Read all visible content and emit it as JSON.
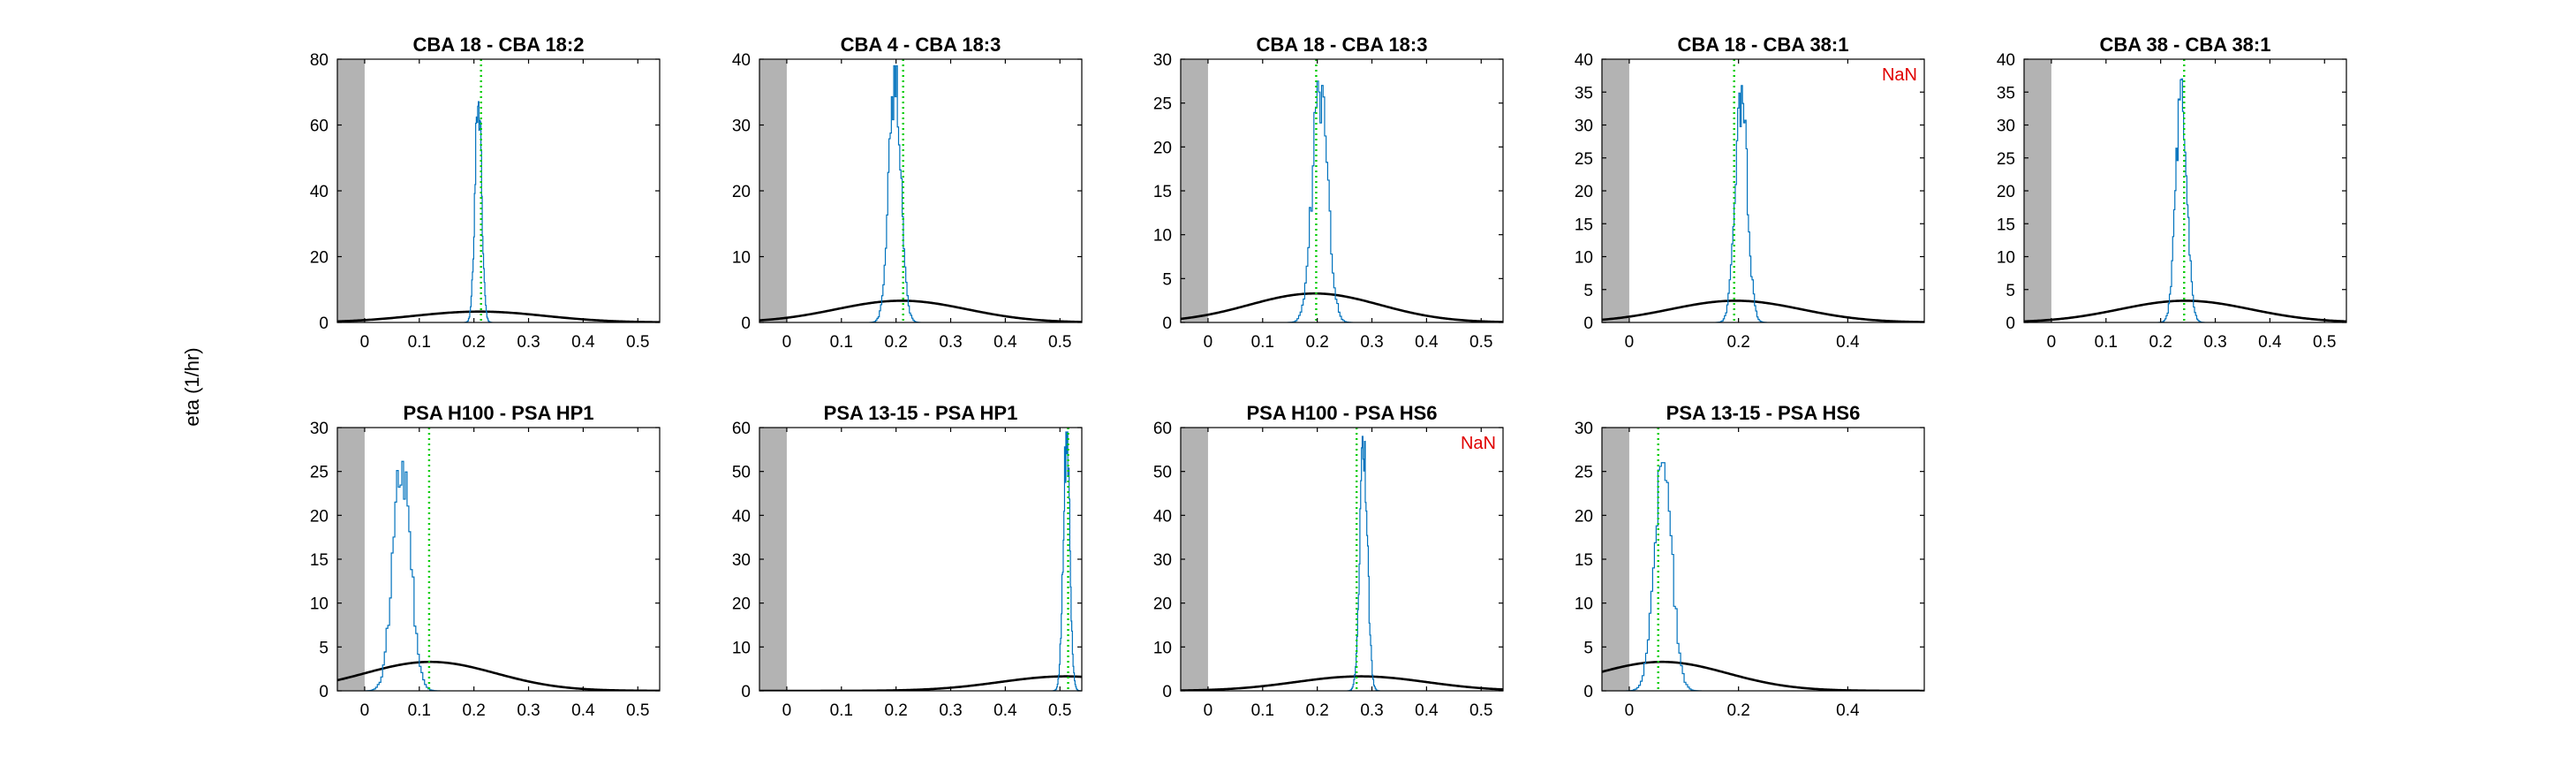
{
  "figure": {
    "ylabel": "eta (1/hr)",
    "colors": {
      "shade": "#b3b3b3",
      "histogram": "#0072bd",
      "median_line": "#00cc00",
      "prior_curve": "#000000",
      "nan_text": "#e00000",
      "axes": "#000000"
    }
  },
  "chart_data": [
    {
      "type": "line",
      "title": "CBA 18 - CBA 18:2",
      "xlim": [
        -0.05,
        0.54
      ],
      "ylim": [
        0,
        80
      ],
      "xticks": [
        0,
        0.1,
        0.2,
        0.3,
        0.4,
        0.5
      ],
      "xtick_labels": [
        "0",
        "0.1",
        "0.2",
        "0.3",
        "0.4",
        "0.5"
      ],
      "yticks": [
        0,
        20,
        40,
        60,
        80
      ],
      "yticks_labels": [
        "0",
        "20",
        "40",
        "60",
        "80"
      ],
      "shaded_region": [
        -0.05,
        0
      ],
      "median": 0.213,
      "histogram": {
        "center": 0.208,
        "width": 0.006,
        "peak": 72
      },
      "prior": {
        "mean": 0.21,
        "sd": 0.12,
        "peak": 3.3
      },
      "annotation": ""
    },
    {
      "type": "line",
      "title": "CBA 4 - CBA 18:3",
      "xlim": [
        -0.05,
        0.54
      ],
      "ylim": [
        0,
        40
      ],
      "xticks": [
        0,
        0.1,
        0.2,
        0.3,
        0.4,
        0.5
      ],
      "xtick_labels": [
        "0",
        "0.1",
        "0.2",
        "0.3",
        "0.4",
        "0.5"
      ],
      "yticks": [
        0,
        10,
        20,
        30,
        40
      ],
      "yticks_labels": [
        "0",
        "10",
        "20",
        "30",
        "40"
      ],
      "shaded_region": [
        -0.05,
        0
      ],
      "median": 0.213,
      "histogram": {
        "center": 0.198,
        "width": 0.011,
        "peak": 39
      },
      "prior": {
        "mean": 0.21,
        "sd": 0.12,
        "peak": 3.3
      },
      "annotation": ""
    },
    {
      "type": "line",
      "title": "CBA 18 - CBA 18:3",
      "xlim": [
        -0.05,
        0.54
      ],
      "ylim": [
        0,
        30
      ],
      "xticks": [
        0,
        0.1,
        0.2,
        0.3,
        0.4,
        0.5
      ],
      "xtick_labels": [
        "0",
        "0.1",
        "0.2",
        "0.3",
        "0.4",
        "0.5"
      ],
      "yticks": [
        0,
        5,
        10,
        15,
        20,
        25,
        30
      ],
      "yticks_labels": [
        "0",
        "5",
        "10",
        "15",
        "20",
        "25",
        "30"
      ],
      "shaded_region": [
        -0.05,
        0
      ],
      "median": 0.198,
      "histogram": {
        "center": 0.205,
        "width": 0.014,
        "peak": 27.5
      },
      "prior": {
        "mean": 0.195,
        "sd": 0.12,
        "peak": 3.3
      },
      "annotation": ""
    },
    {
      "type": "line",
      "title": "CBA 18 - CBA 38:1",
      "xlim": [
        -0.05,
        0.54
      ],
      "ylim": [
        0,
        40
      ],
      "xticks": [
        0,
        0.2,
        0.4
      ],
      "xtick_labels": [
        "0",
        "0.2",
        "0.4"
      ],
      "yticks": [
        0,
        5,
        10,
        15,
        20,
        25,
        30,
        35,
        40
      ],
      "yticks_labels": [
        "0",
        "5",
        "10",
        "15",
        "20",
        "25",
        "30",
        "35",
        "40"
      ],
      "shaded_region": [
        -0.05,
        0
      ],
      "median": 0.192,
      "histogram": {
        "center": 0.205,
        "width": 0.011,
        "peak": 36
      },
      "prior": {
        "mean": 0.195,
        "sd": 0.12,
        "peak": 3.3
      },
      "annotation": "NaN"
    },
    {
      "type": "line",
      "title": "CBA 38 - CBA 38:1",
      "xlim": [
        -0.05,
        0.54
      ],
      "ylim": [
        0,
        40
      ],
      "xticks": [
        0,
        0.1,
        0.2,
        0.3,
        0.4,
        0.5
      ],
      "xtick_labels": [
        "0",
        "0.1",
        "0.2",
        "0.3",
        "0.4",
        "0.5"
      ],
      "yticks": [
        0,
        5,
        10,
        15,
        20,
        25,
        30,
        35,
        40
      ],
      "yticks_labels": [
        "0",
        "5",
        "10",
        "15",
        "20",
        "25",
        "30",
        "35",
        "40"
      ],
      "shaded_region": [
        -0.05,
        0
      ],
      "median": 0.243,
      "histogram": {
        "center": 0.238,
        "width": 0.01,
        "peak": 37
      },
      "prior": {
        "mean": 0.245,
        "sd": 0.12,
        "peak": 3.3
      },
      "annotation": ""
    },
    {
      "type": "line",
      "title": "PSA H100 - PSA HP1",
      "xlim": [
        -0.05,
        0.54
      ],
      "ylim": [
        0,
        30
      ],
      "xticks": [
        0,
        0.1,
        0.2,
        0.3,
        0.4,
        0.5
      ],
      "xtick_labels": [
        "0",
        "0.1",
        "0.2",
        "0.3",
        "0.4",
        "0.5"
      ],
      "yticks": [
        0,
        5,
        10,
        15,
        20,
        25,
        30
      ],
      "yticks_labels": [
        "0",
        "5",
        "10",
        "15",
        "20",
        "25",
        "30"
      ],
      "shaded_region": [
        -0.05,
        0
      ],
      "median": 0.118,
      "histogram": {
        "center": 0.068,
        "width": 0.016,
        "peak": 27
      },
      "prior": {
        "mean": 0.12,
        "sd": 0.12,
        "peak": 3.3
      },
      "annotation": ""
    },
    {
      "type": "line",
      "title": "PSA 13-15 - PSA HP1",
      "xlim": [
        -0.05,
        0.54
      ],
      "ylim": [
        0,
        60
      ],
      "xticks": [
        0,
        0.1,
        0.2,
        0.3,
        0.4,
        0.5
      ],
      "xtick_labels": [
        "0",
        "0.1",
        "0.2",
        "0.3",
        "0.4",
        "0.5"
      ],
      "yticks": [
        0,
        10,
        20,
        30,
        40,
        50,
        60
      ],
      "yticks_labels": [
        "0",
        "10",
        "20",
        "30",
        "40",
        "50",
        "60"
      ],
      "shaded_region": [
        -0.05,
        0
      ],
      "median": 0.515,
      "histogram": {
        "center": 0.512,
        "width": 0.006,
        "peak": 59
      },
      "prior": {
        "mean": 0.51,
        "sd": 0.12,
        "peak": 3.3
      },
      "annotation": ""
    },
    {
      "type": "line",
      "title": "PSA H100 - PSA HS6",
      "xlim": [
        -0.05,
        0.54
      ],
      "ylim": [
        0,
        60
      ],
      "xticks": [
        0,
        0.1,
        0.2,
        0.3,
        0.4,
        0.5
      ],
      "xtick_labels": [
        "0",
        "0.1",
        "0.2",
        "0.3",
        "0.4",
        "0.5"
      ],
      "yticks": [
        0,
        10,
        20,
        30,
        40,
        50,
        60
      ],
      "yticks_labels": [
        "0",
        "10",
        "20",
        "30",
        "40",
        "50",
        "60"
      ],
      "shaded_region": [
        -0.05,
        0
      ],
      "median": 0.272,
      "histogram": {
        "center": 0.285,
        "width": 0.007,
        "peak": 58
      },
      "prior": {
        "mean": 0.28,
        "sd": 0.12,
        "peak": 3.3
      },
      "annotation": "NaN"
    },
    {
      "type": "line",
      "title": "PSA 13-15 - PSA HS6",
      "xlim": [
        -0.05,
        0.54
      ],
      "ylim": [
        0,
        30
      ],
      "xticks": [
        0,
        0.2,
        0.4
      ],
      "xtick_labels": [
        "0",
        "0.2",
        "0.4"
      ],
      "yticks": [
        0,
        5,
        10,
        15,
        20,
        25,
        30
      ],
      "yticks_labels": [
        "0",
        "5",
        "10",
        "15",
        "20",
        "25",
        "30"
      ],
      "shaded_region": [
        -0.05,
        0
      ],
      "median": 0.053,
      "histogram": {
        "center": 0.062,
        "width": 0.016,
        "peak": 26
      },
      "prior": {
        "mean": 0.06,
        "sd": 0.12,
        "peak": 3.3
      },
      "annotation": ""
    }
  ]
}
